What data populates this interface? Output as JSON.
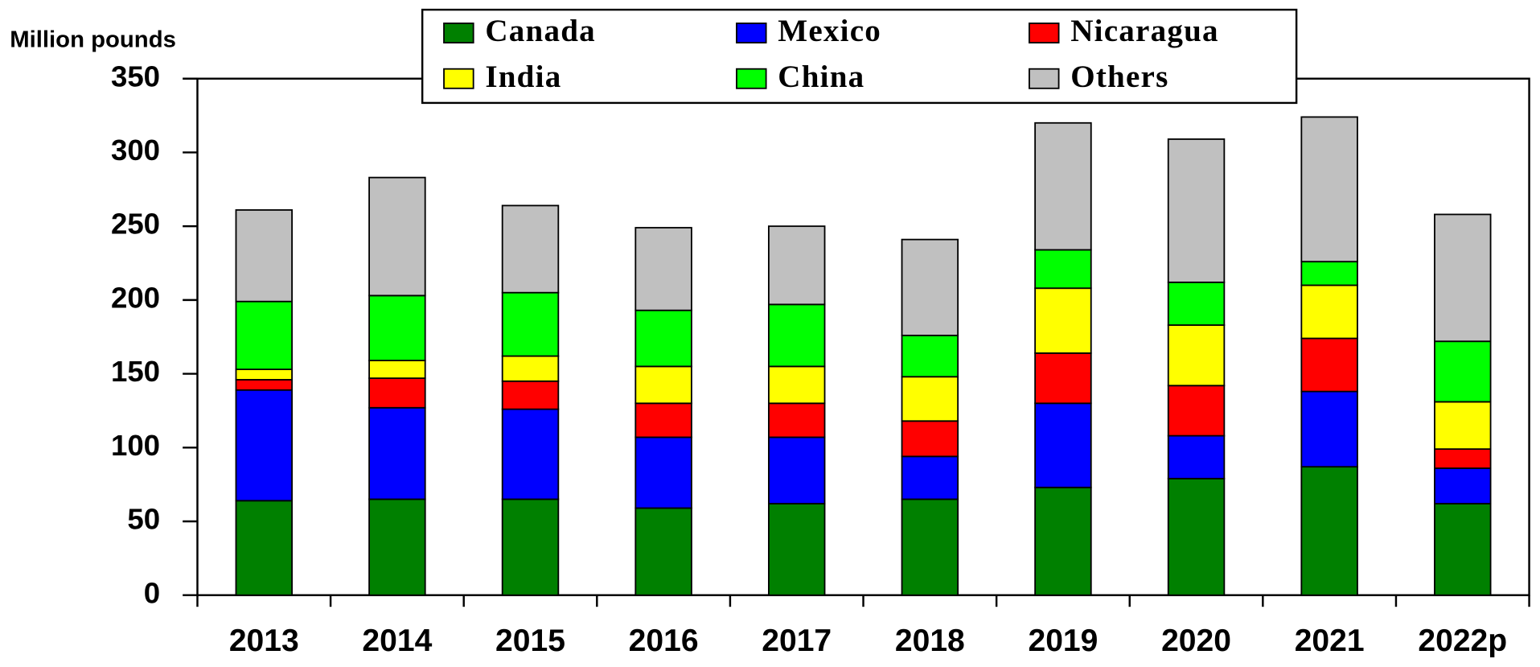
{
  "chart_data": {
    "type": "stacked_bar",
    "y_label": "Million pounds",
    "categories": [
      "2013",
      "2014",
      "2015",
      "2016",
      "2017",
      "2018",
      "2019",
      "2020",
      "2021",
      "2022p"
    ],
    "series": [
      {
        "name": "Canada",
        "color": "#008000",
        "values": [
          64,
          65,
          65,
          59,
          62,
          65,
          73,
          79,
          87,
          62
        ]
      },
      {
        "name": "Mexico",
        "color": "#0000ff",
        "values": [
          75,
          62,
          61,
          48,
          45,
          29,
          57,
          29,
          51,
          24
        ]
      },
      {
        "name": "Nicaragua",
        "color": "#ff0000",
        "values": [
          7,
          20,
          19,
          23,
          23,
          24,
          34,
          34,
          36,
          13
        ]
      },
      {
        "name": "India",
        "color": "#ffff00",
        "values": [
          7,
          12,
          17,
          25,
          25,
          30,
          44,
          41,
          36,
          32
        ]
      },
      {
        "name": "China",
        "color": "#00ff00",
        "values": [
          46,
          44,
          43,
          38,
          42,
          28,
          26,
          29,
          16,
          41
        ]
      },
      {
        "name": "Others",
        "color": "#c0c0c0",
        "values": [
          62,
          80,
          59,
          56,
          53,
          65,
          86,
          97,
          98,
          86
        ]
      }
    ],
    "ylim": [
      0,
      350
    ],
    "yticks": [
      0,
      50,
      100,
      150,
      200,
      250,
      300,
      350
    ]
  }
}
